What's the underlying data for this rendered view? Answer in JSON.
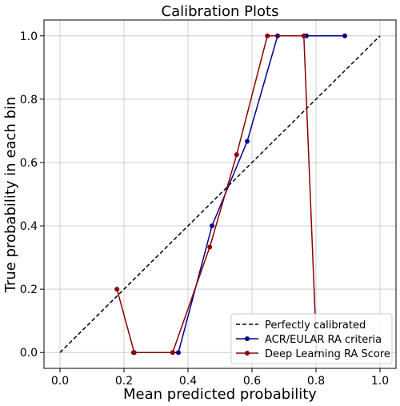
{
  "chart_data": {
    "type": "line",
    "title": "Calibration Plots",
    "xlabel": "Mean predicted probability",
    "ylabel": "True probability in each bin",
    "xlim": [
      -0.05,
      1.05
    ],
    "ylim": [
      -0.05,
      1.05
    ],
    "xticks": [
      "0.0",
      "0.2",
      "0.4",
      "0.6",
      "0.8",
      "1.0"
    ],
    "yticks": [
      "0.0",
      "0.2",
      "0.4",
      "0.6",
      "0.8",
      "1.0"
    ],
    "grid": true,
    "legend_position": "lower-right",
    "series": [
      {
        "name": "Perfectly calibrated",
        "style": "dashed",
        "color": "#000000",
        "x": [
          0.0,
          1.0
        ],
        "y": [
          0.0,
          1.0
        ]
      },
      {
        "name": "ACR/EULAR RA criteria",
        "style": "solid-markers",
        "color": "#00008b",
        "x": [
          0.23,
          0.37,
          0.475,
          0.585,
          0.68,
          0.77,
          0.89
        ],
        "y": [
          0.0,
          0.0,
          0.4,
          0.667,
          1.0,
          1.0,
          1.0
        ]
      },
      {
        "name": "Deep Learning RA Score",
        "style": "solid-markers",
        "color": "#8b0000",
        "x": [
          0.178,
          0.232,
          0.352,
          0.468,
          0.552,
          0.648,
          0.762,
          0.802
        ],
        "y": [
          0.2,
          0.0,
          0.0,
          0.333,
          0.625,
          1.0,
          1.0,
          0.0
        ]
      }
    ]
  }
}
